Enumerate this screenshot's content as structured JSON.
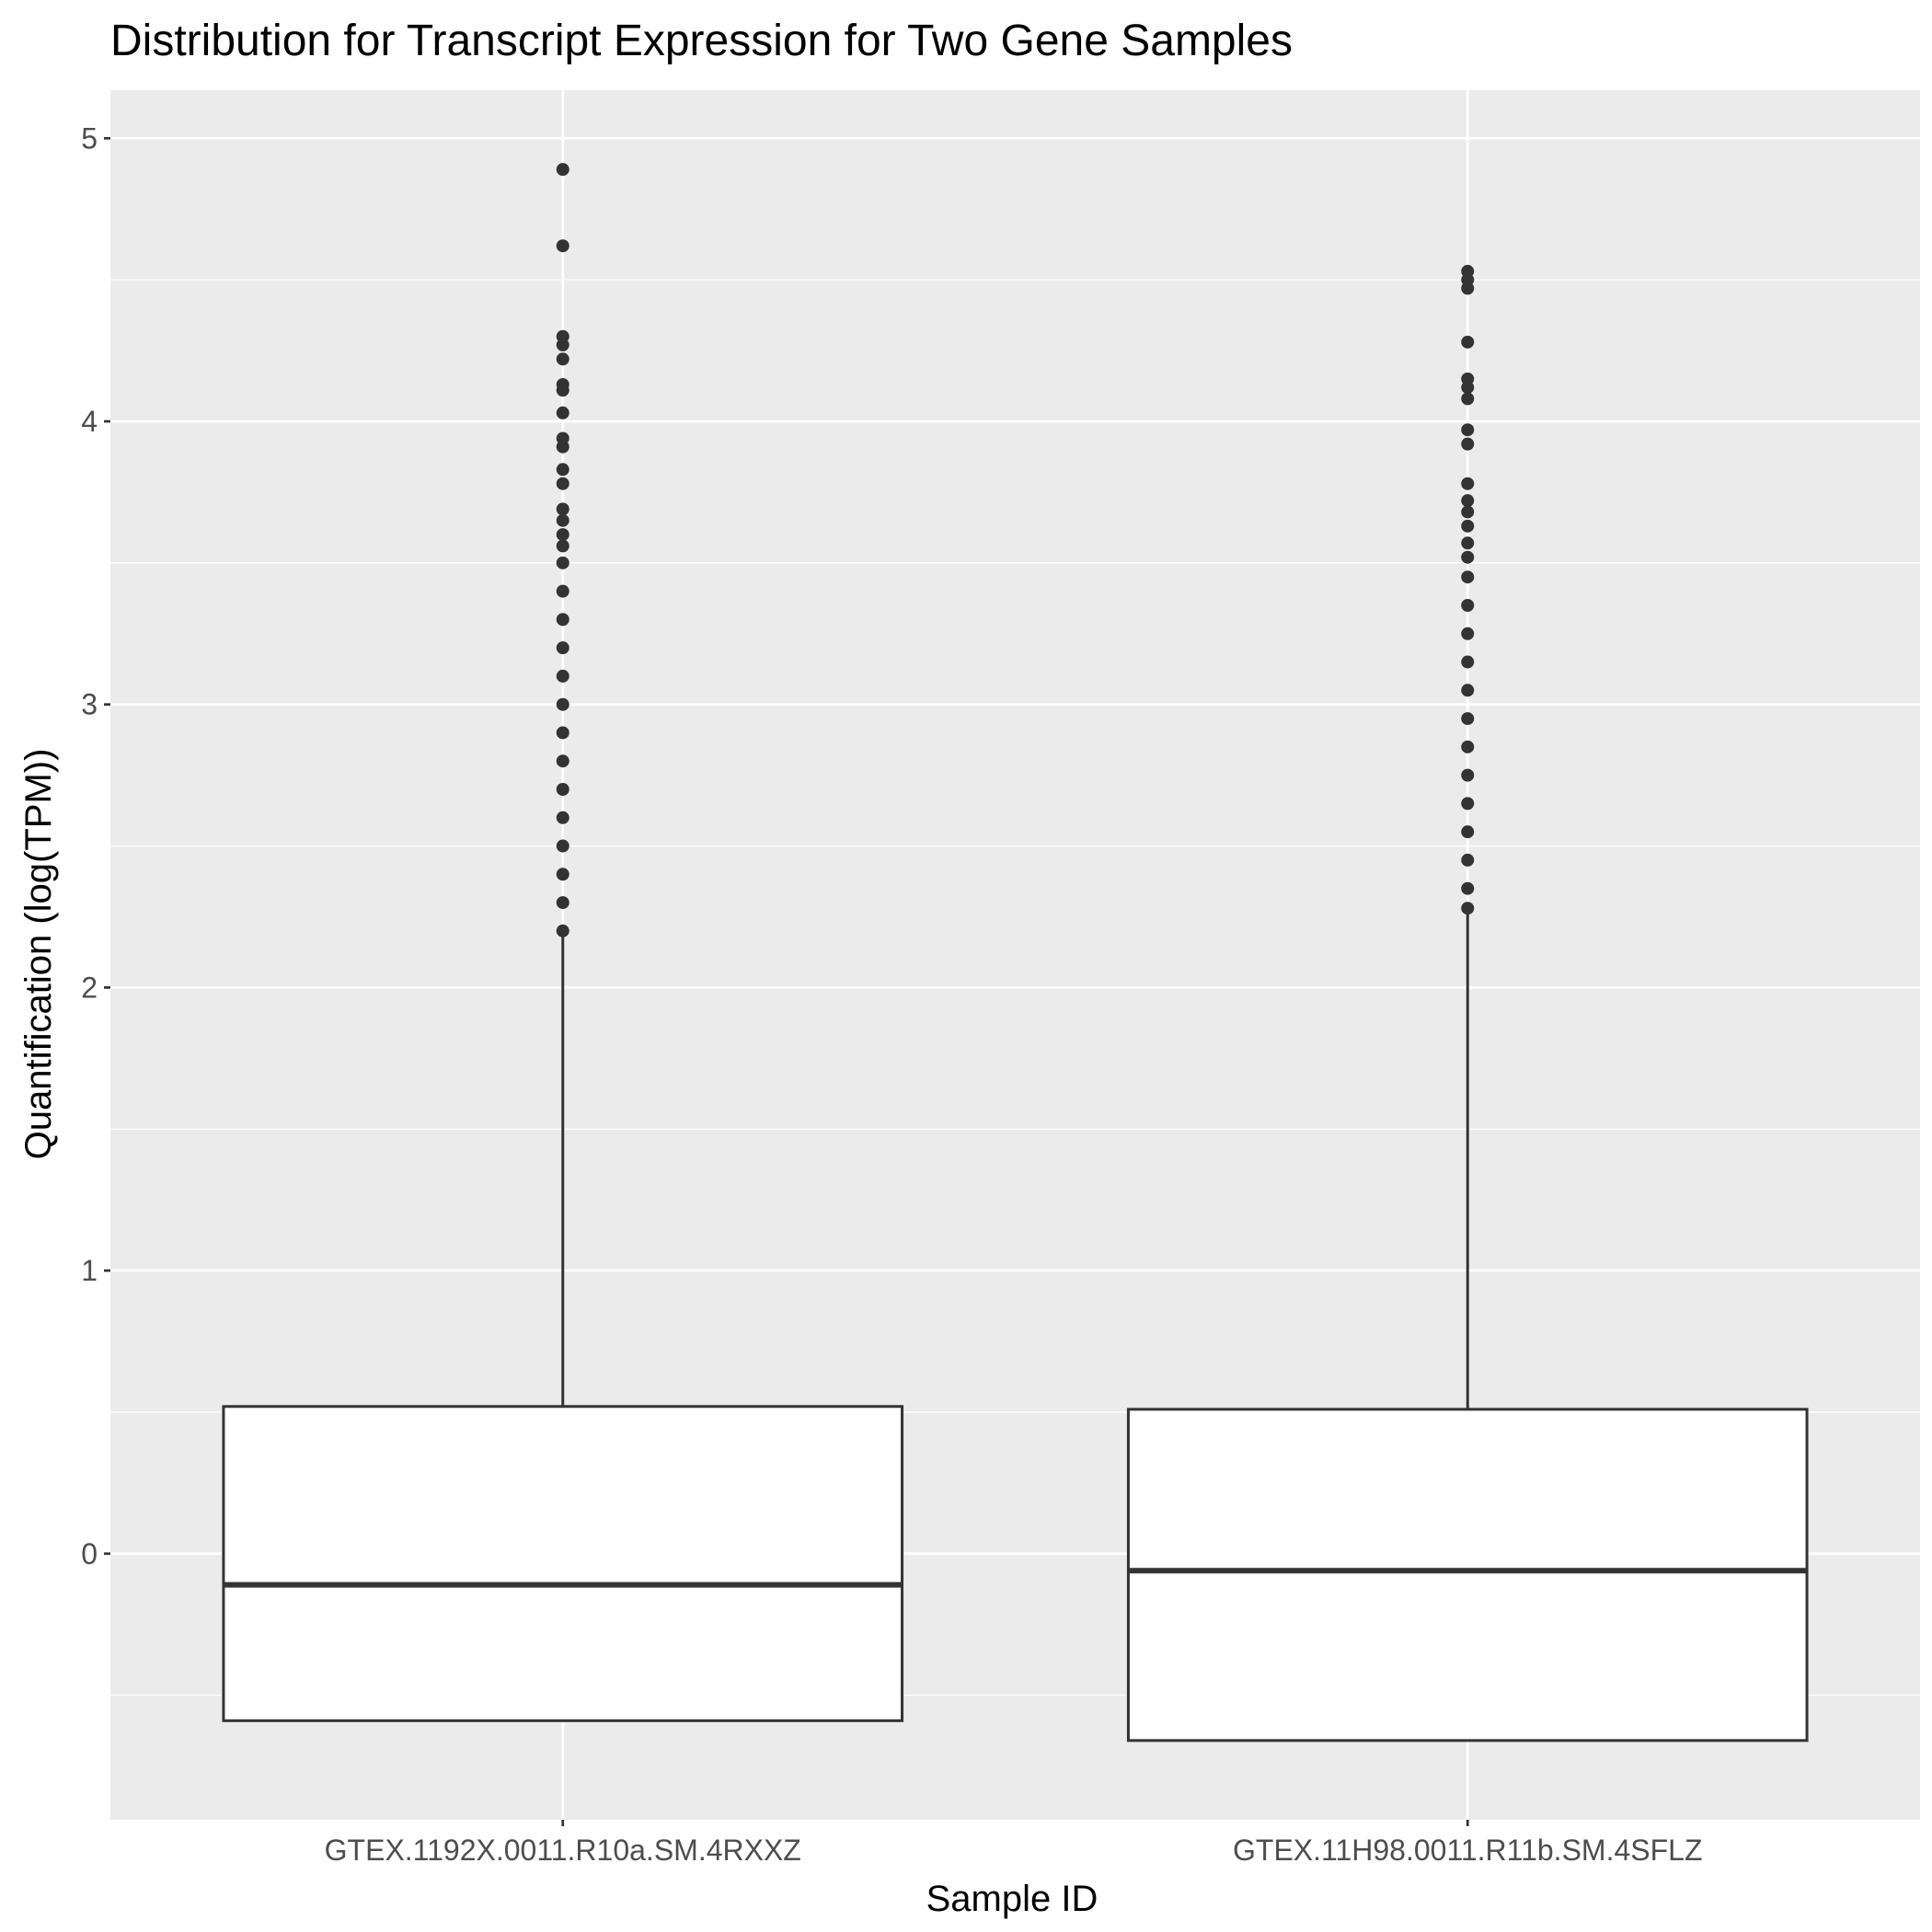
{
  "chart_data": {
    "type": "box",
    "title": "Distribution for Transcript Expression for Two Gene Samples",
    "xlabel": "Sample ID",
    "ylabel": "Quantification (log(TPM))",
    "ylim": [
      -0.94,
      5.17
    ],
    "yticks": [
      0,
      1,
      2,
      3,
      4,
      5
    ],
    "grid": true,
    "background": "#ebebeb",
    "gridline_color": "#ffffff",
    "box_fill": "#ffffff",
    "line_color": "#333333",
    "categories": [
      "GTEX.1192X.0011.R10a.SM.4RXXZ",
      "GTEX.11H98.0011.R11b.SM.4SFLZ"
    ],
    "boxes": [
      {
        "category": "GTEX.1192X.0011.R10a.SM.4RXXZ",
        "lower_whisker": -0.59,
        "q1": -0.59,
        "median": -0.11,
        "q3": 0.52,
        "upper_whisker": 2.19,
        "outliers": [
          2.2,
          2.3,
          2.4,
          2.5,
          2.6,
          2.7,
          2.8,
          2.9,
          3.0,
          3.1,
          3.2,
          3.3,
          3.4,
          3.5,
          3.56,
          3.6,
          3.65,
          3.69,
          3.78,
          3.83,
          3.91,
          3.94,
          4.03,
          4.11,
          4.13,
          4.22,
          4.27,
          4.3,
          4.62,
          4.89
        ]
      },
      {
        "category": "GTEX.11H98.0011.R11b.SM.4SFLZ",
        "lower_whisker": -0.66,
        "q1": -0.66,
        "median": -0.06,
        "q3": 0.51,
        "upper_whisker": 2.27,
        "outliers": [
          2.28,
          2.35,
          2.45,
          2.55,
          2.65,
          2.75,
          2.85,
          2.95,
          3.05,
          3.15,
          3.25,
          3.35,
          3.45,
          3.52,
          3.57,
          3.63,
          3.68,
          3.72,
          3.78,
          3.92,
          3.97,
          4.08,
          4.12,
          4.15,
          4.28,
          4.47,
          4.5,
          4.53
        ]
      }
    ]
  }
}
